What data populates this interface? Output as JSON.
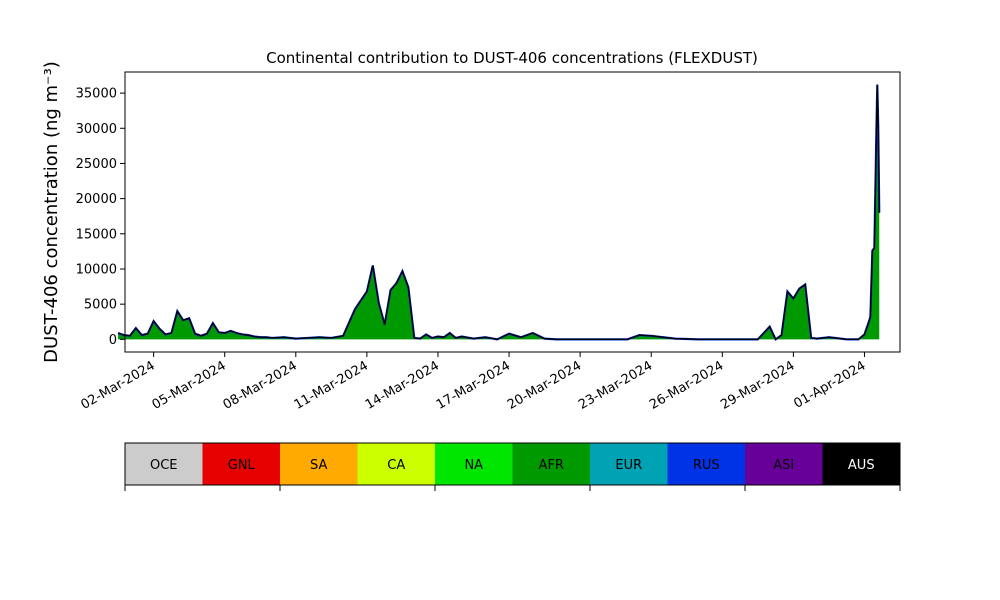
{
  "chart_data": {
    "type": "area",
    "title": "Continental contribution to DUST-406 concentrations (FLEXDUST)",
    "xlabel": "",
    "ylabel": "DUST-406 concentration (ng m⁻³)",
    "ylim": [
      -1800,
      38000
    ],
    "xlim": [
      "2024-02-29T19:00",
      "2024-04-02T12:00"
    ],
    "yticks": [
      0,
      5000,
      10000,
      15000,
      20000,
      25000,
      30000,
      35000
    ],
    "xticks": [
      "2024-03-02",
      "2024-03-05",
      "2024-03-08",
      "2024-03-11",
      "2024-03-14",
      "2024-03-17",
      "2024-03-20",
      "2024-03-23",
      "2024-03-26",
      "2024-03-29",
      "2024-04-01"
    ],
    "xtick_labels": [
      "02-Mar-2024",
      "05-Mar-2024",
      "08-Mar-2024",
      "11-Mar-2024",
      "14-Mar-2024",
      "17-Mar-2024",
      "20-Mar-2024",
      "23-Mar-2024",
      "26-Mar-2024",
      "29-Mar-2024",
      "01-Apr-2024"
    ],
    "grid": false,
    "x": [
      "2024-02-29T12:00",
      "2024-02-29T18:00",
      "2024-03-01T00:00",
      "2024-03-01T06:00",
      "2024-03-01T12:00",
      "2024-03-01T18:00",
      "2024-03-02T00:00",
      "2024-03-02T06:00",
      "2024-03-02T12:00",
      "2024-03-02T18:00",
      "2024-03-03T00:00",
      "2024-03-03T06:00",
      "2024-03-03T12:00",
      "2024-03-03T18:00",
      "2024-03-04T00:00",
      "2024-03-04T06:00",
      "2024-03-04T12:00",
      "2024-03-04T18:00",
      "2024-03-05T00:00",
      "2024-03-05T06:00",
      "2024-03-05T12:00",
      "2024-03-05T18:00",
      "2024-03-06T00:00",
      "2024-03-06T06:00",
      "2024-03-06T12:00",
      "2024-03-06T18:00",
      "2024-03-07T00:00",
      "2024-03-07T12:00",
      "2024-03-08T00:00",
      "2024-03-08T12:00",
      "2024-03-09T00:00",
      "2024-03-09T12:00",
      "2024-03-10T00:00",
      "2024-03-10T12:00",
      "2024-03-11T00:00",
      "2024-03-11T06:00",
      "2024-03-11T12:00",
      "2024-03-11T18:00",
      "2024-03-12T00:00",
      "2024-03-12T06:00",
      "2024-03-12T12:00",
      "2024-03-12T18:00",
      "2024-03-13T00:00",
      "2024-03-13T06:00",
      "2024-03-13T12:00",
      "2024-03-13T18:00",
      "2024-03-14T00:00",
      "2024-03-14T06:00",
      "2024-03-14T12:00",
      "2024-03-14T18:00",
      "2024-03-15T00:00",
      "2024-03-15T12:00",
      "2024-03-16T00:00",
      "2024-03-16T12:00",
      "2024-03-17T00:00",
      "2024-03-17T12:00",
      "2024-03-18T00:00",
      "2024-03-18T12:00",
      "2024-03-19T00:00",
      "2024-03-20T00:00",
      "2024-03-21T00:00",
      "2024-03-22T00:00",
      "2024-03-22T12:00",
      "2024-03-23T00:00",
      "2024-03-24T00:00",
      "2024-03-25T00:00",
      "2024-03-26T00:00",
      "2024-03-27T00:00",
      "2024-03-27T12:00",
      "2024-03-28T00:00",
      "2024-03-28T06:00",
      "2024-03-28T12:00",
      "2024-03-28T18:00",
      "2024-03-29T00:00",
      "2024-03-29T06:00",
      "2024-03-29T12:00",
      "2024-03-29T18:00",
      "2024-03-30T00:00",
      "2024-03-30T12:00",
      "2024-03-31T00:00",
      "2024-03-31T06:00",
      "2024-03-31T12:00",
      "2024-03-31T18:00",
      "2024-04-01T00:00",
      "2024-04-01T02:00",
      "2024-04-01T04:00",
      "2024-04-01T06:00",
      "2024-04-01T08:00"
    ],
    "series": [
      {
        "name": "AFR",
        "values": [
          900,
          600,
          500,
          1600,
          600,
          800,
          2600,
          1500,
          700,
          900,
          4000,
          2700,
          3000,
          800,
          500,
          800,
          2300,
          1000,
          900,
          1200,
          900,
          700,
          600,
          400,
          300,
          300,
          200,
          300,
          100,
          200,
          300,
          200,
          500,
          4300,
          6800,
          10500,
          5200,
          2100,
          7000,
          8000,
          9700,
          7400,
          200,
          100,
          700,
          200,
          400,
          300,
          900,
          200,
          400,
          100,
          300,
          0,
          800,
          300,
          900,
          100,
          0,
          0,
          0,
          0,
          600,
          500,
          100,
          0,
          0,
          0,
          0,
          1800,
          0,
          600,
          6800,
          5800,
          7200,
          7800,
          200,
          100,
          300,
          100,
          0,
          0,
          0,
          700,
          1500,
          2300,
          3200,
          12600
        ]
      },
      {
        "name": "AUS",
        "values": [
          0,
          0,
          0,
          0,
          0,
          0,
          0,
          0,
          0,
          0,
          0,
          0,
          0,
          0,
          0,
          0,
          0,
          0,
          0,
          0,
          0,
          0,
          0,
          0,
          0,
          0,
          0,
          0,
          0,
          0,
          0,
          0,
          0,
          0,
          0,
          0,
          0,
          0,
          0,
          0,
          0,
          0,
          0,
          0,
          0,
          0,
          0,
          0,
          0,
          0,
          0,
          0,
          0,
          0,
          0,
          0,
          0,
          0,
          0,
          0,
          0,
          0,
          0,
          0,
          0,
          0,
          0,
          0,
          0,
          0,
          0,
          0,
          0,
          0,
          0,
          0,
          0,
          0,
          0,
          0,
          0,
          0,
          0,
          0,
          0,
          0,
          0,
          0
        ]
      }
    ],
    "total_tail_x": [
      "2024-04-01T08:00",
      "2024-04-01T10:00",
      "2024-04-01T11:00",
      "2024-04-01T12:00",
      "2024-04-01T13:00",
      "2024-04-01T14:00",
      "2024-04-01T15:00"
    ],
    "total_tail_values": [
      12600,
      13000,
      21000,
      29000,
      36200,
      30000,
      18000
    ],
    "legend": {
      "placement": "bottom",
      "entries": [
        {
          "name": "OCE",
          "color": "#cccccc",
          "text_color": "#000000"
        },
        {
          "name": "GNL",
          "color": "#e60000",
          "text_color": "#000000"
        },
        {
          "name": "SA",
          "color": "#ffaa00",
          "text_color": "#000000"
        },
        {
          "name": "CA",
          "color": "#ccff00",
          "text_color": "#000000"
        },
        {
          "name": "NA",
          "color": "#00e600",
          "text_color": "#000000"
        },
        {
          "name": "AFR",
          "color": "#009900",
          "text_color": "#000000"
        },
        {
          "name": "EUR",
          "color": "#00a3b3",
          "text_color": "#000000"
        },
        {
          "name": "RUS",
          "color": "#0033e6",
          "text_color": "#000000"
        },
        {
          "name": "ASI",
          "color": "#660099",
          "text_color": "#000000"
        },
        {
          "name": "AUS",
          "color": "#000000",
          "text_color": "#ffffff"
        }
      ]
    }
  },
  "colors": {
    "fill": "#009900",
    "total_line": "#000000",
    "accent_line": "#0033e6"
  }
}
